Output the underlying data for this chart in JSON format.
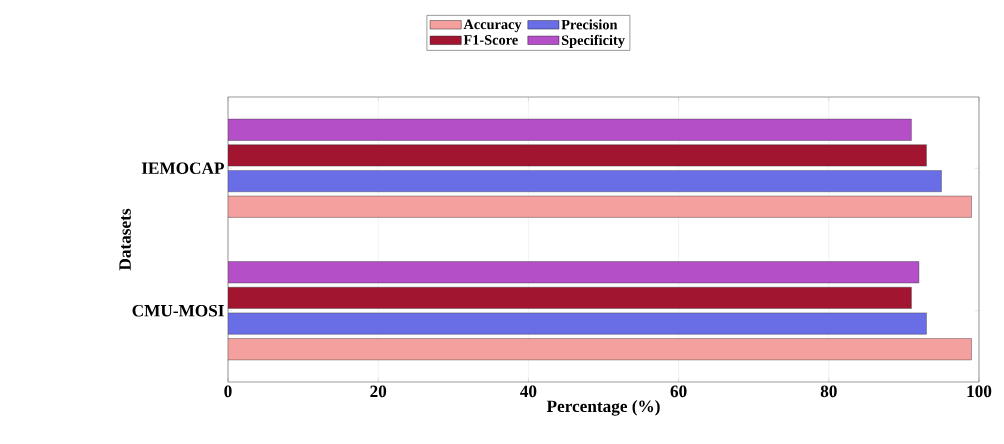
{
  "chart_data": {
    "type": "bar",
    "orientation": "horizontal",
    "xlabel": "Percentage (%)",
    "ylabel": "Datasets",
    "categories": [
      "IEMOCAP",
      "CMU-MOSI"
    ],
    "series": [
      {
        "name": "Accuracy",
        "color": "#f4a09e",
        "values": [
          99,
          99
        ]
      },
      {
        "name": "Precision",
        "color": "#6a6ee6",
        "values": [
          95,
          93
        ]
      },
      {
        "name": "F1-Score",
        "color": "#a11530",
        "values": [
          93,
          91
        ]
      },
      {
        "name": "Specificity",
        "color": "#b44fc8",
        "values": [
          91,
          92
        ]
      }
    ],
    "xlim": [
      0,
      100
    ],
    "xticks": [
      0,
      20,
      40,
      60,
      80,
      100
    ],
    "grid": "x",
    "legend": "top"
  }
}
